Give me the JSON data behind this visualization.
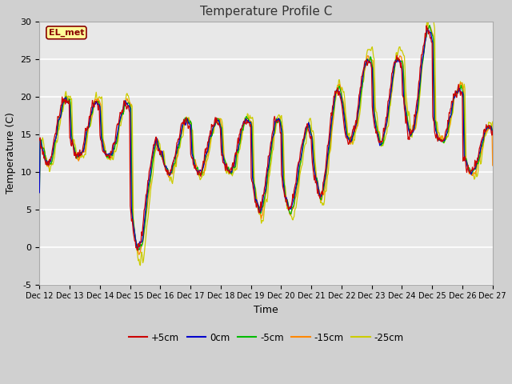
{
  "title": "Temperature Profile C",
  "xlabel": "Time",
  "ylabel": "Temperature (C)",
  "ylim": [
    -5,
    30
  ],
  "yticks": [
    -5,
    0,
    5,
    10,
    15,
    20,
    25,
    30
  ],
  "xtick_labels": [
    "Dec 12",
    "Dec 13",
    "Dec 14",
    "Dec 15",
    "Dec 16",
    "Dec 17",
    "Dec 18",
    "Dec 19",
    "Dec 20",
    "Dec 21",
    "Dec 22",
    "Dec 23",
    "Dec 24",
    "Dec 25",
    "Dec 26",
    "Dec 27"
  ],
  "series_colors": {
    "+5cm": "#cc0000",
    "0cm": "#0000cc",
    "-5cm": "#00bb00",
    "-15cm": "#ff8800",
    "-25cm": "#cccc00"
  },
  "legend_label": "EL_met",
  "fig_bg_color": "#d0d0d0",
  "plot_bg_color": "#e8e8e8",
  "grid_color": "#ffffff",
  "annotation_box_color": "#ffff99",
  "annotation_text_color": "#880000",
  "title_fontsize": 11,
  "axis_label_fontsize": 9,
  "tick_fontsize": 8,
  "linewidth": 0.9
}
